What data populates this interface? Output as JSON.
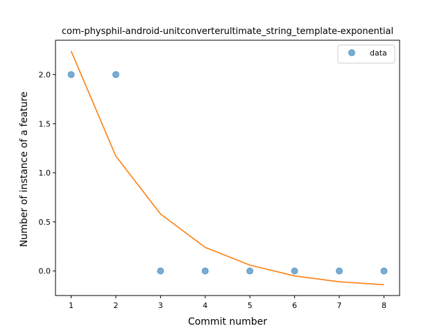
{
  "chart_data": {
    "type": "scatter",
    "title": "com-physphil-android-unitconverterultimate_string_template-exponential",
    "xlabel": "Commit number",
    "ylabel": "Number of instance of a feature",
    "xlim": [
      0.65,
      8.35
    ],
    "ylim": [
      -0.25,
      2.35
    ],
    "xticks": [
      1,
      2,
      3,
      4,
      5,
      6,
      7,
      8
    ],
    "xtick_labels": [
      "1",
      "2",
      "3",
      "4",
      "5",
      "6",
      "7",
      "8"
    ],
    "yticks": [
      0.0,
      0.5,
      1.0,
      1.5,
      2.0
    ],
    "ytick_labels": [
      "0.0",
      "0.5",
      "1.0",
      "1.5",
      "2.0"
    ],
    "grid": false,
    "legend_position": "top-right",
    "series": [
      {
        "name": "data",
        "kind": "scatter",
        "color": "#1f77b4",
        "x": [
          1,
          2,
          3,
          4,
          5,
          6,
          7,
          8
        ],
        "y": [
          2,
          2,
          0,
          0,
          0,
          0,
          0,
          0
        ]
      },
      {
        "kind": "line",
        "color": "#ff7f0e",
        "x": [
          1,
          2,
          3,
          4,
          5,
          6,
          7,
          8
        ],
        "y": [
          2.24,
          1.17,
          0.58,
          0.24,
          0.06,
          -0.05,
          -0.11,
          -0.14
        ]
      }
    ]
  }
}
